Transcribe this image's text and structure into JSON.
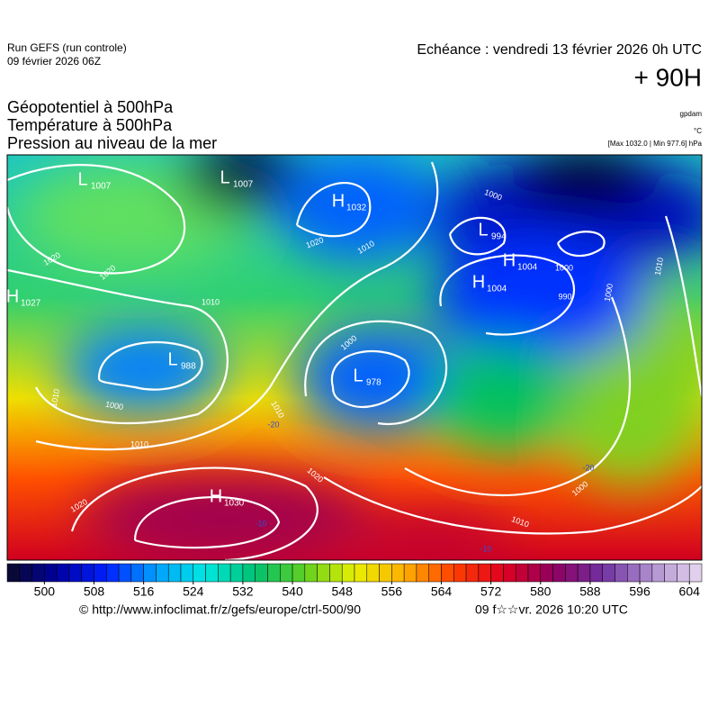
{
  "header": {
    "run": "Run GEFS (run controle)",
    "run_date": "09 février 2026 06Z",
    "forecast": "Echéance : vendredi 13 février 2026 0h UTC",
    "lead": "+ 90H"
  },
  "legend": {
    "lines": [
      "Géopotentiel à 500hPa",
      "Température à 500hPa",
      "Pression au niveau de la mer"
    ],
    "geo_unit": "gpdam",
    "temp_unit": "°C",
    "pressure_range": "[Max 1032.0 | Min 977.6] hPa"
  },
  "map": {
    "centers": [
      {
        "type": "L",
        "value": 1007
      },
      {
        "type": "L",
        "value": 1007
      },
      {
        "type": "H",
        "value": 1032
      },
      {
        "type": "L",
        "value": 994
      },
      {
        "type": "H",
        "value": 1004
      },
      {
        "type": "H",
        "value": 1004
      },
      {
        "type": "L",
        "value": 988
      },
      {
        "type": "L",
        "value": 978
      },
      {
        "type": "H",
        "value": 1030
      },
      {
        "type": "H",
        "value": 1027
      }
    ],
    "isobar_labels": [
      1020,
      1020,
      1010,
      1010,
      1000,
      1010,
      1020,
      1010,
      1000,
      1000,
      990,
      1000,
      1010,
      1000,
      1010,
      1020,
      1020,
      1010,
      1000
    ],
    "isotherm_labels": [
      -20,
      -20,
      -10,
      -10
    ]
  },
  "colorbar": {
    "range": [
      494,
      606
    ],
    "step": 2,
    "ticks": [
      500,
      508,
      516,
      524,
      532,
      540,
      548,
      556,
      564,
      572,
      580,
      588,
      596,
      604
    ],
    "colors": [
      "#0a0a28",
      "#0000a0",
      "#0020ff",
      "#00a0ff",
      "#00e8e0",
      "#00c070",
      "#60d020",
      "#e8f000",
      "#ffb000",
      "#ff4000",
      "#e00020",
      "#900060",
      "#7030a0",
      "#b090d0",
      "#e8d8f0"
    ]
  },
  "footer": {
    "source": "© http://www.infoclimat.fr/z/gefs/europe/ctrl-500/90",
    "timestamp": "09 f☆☆vr. 2026 10:20 UTC"
  }
}
